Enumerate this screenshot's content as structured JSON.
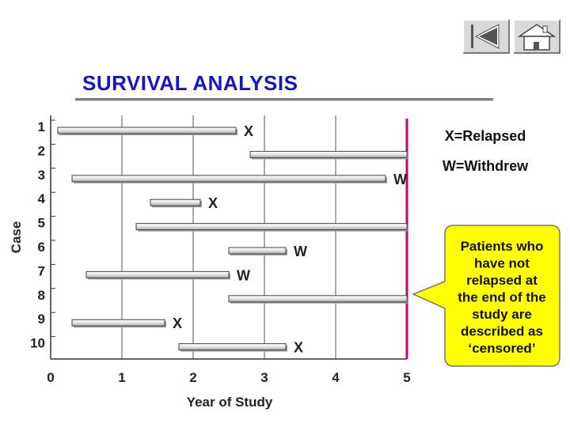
{
  "nav": {
    "back_icon": "skip-back-icon",
    "home_icon": "home-icon"
  },
  "title": "SURVIVAL ANALYSIS",
  "legend": {
    "relapsed": "X=Relapsed",
    "withdrew": "W=Withdrew"
  },
  "callout": {
    "lines": [
      "Patients who",
      "have not",
      "relapsed at",
      "the end of the",
      "study are",
      "described as",
      "‘censored’"
    ],
    "color": "#ffff00"
  },
  "colors": {
    "study_end_line": "#cc0066",
    "title": "#1414c8",
    "bar_fill": "#e4e4e4"
  },
  "chart_data": {
    "type": "bar",
    "orientation": "horizontal",
    "xlabel": "Year of Study",
    "ylabel": "Case",
    "xlim": [
      0,
      5
    ],
    "x_ticks": [
      "0",
      "1",
      "2",
      "3",
      "4",
      "5"
    ],
    "grid": true,
    "study_end": 5,
    "cases": [
      {
        "case": "1",
        "start": 0.1,
        "end": 2.6,
        "marker": "X"
      },
      {
        "case": "2",
        "start": 2.8,
        "end": 5.0,
        "marker": ""
      },
      {
        "case": "3",
        "start": 0.3,
        "end": 4.7,
        "marker": "W"
      },
      {
        "case": "4",
        "start": 1.4,
        "end": 2.1,
        "marker": "X"
      },
      {
        "case": "5",
        "start": 1.2,
        "end": 5.0,
        "marker": ""
      },
      {
        "case": "6",
        "start": 2.5,
        "end": 3.3,
        "marker": "W"
      },
      {
        "case": "7",
        "start": 0.5,
        "end": 2.5,
        "marker": "W"
      },
      {
        "case": "8",
        "start": 2.5,
        "end": 5.0,
        "marker": ""
      },
      {
        "case": "9",
        "start": 0.3,
        "end": 1.6,
        "marker": "X"
      },
      {
        "case": "10",
        "start": 1.8,
        "end": 3.3,
        "marker": "X"
      }
    ]
  }
}
